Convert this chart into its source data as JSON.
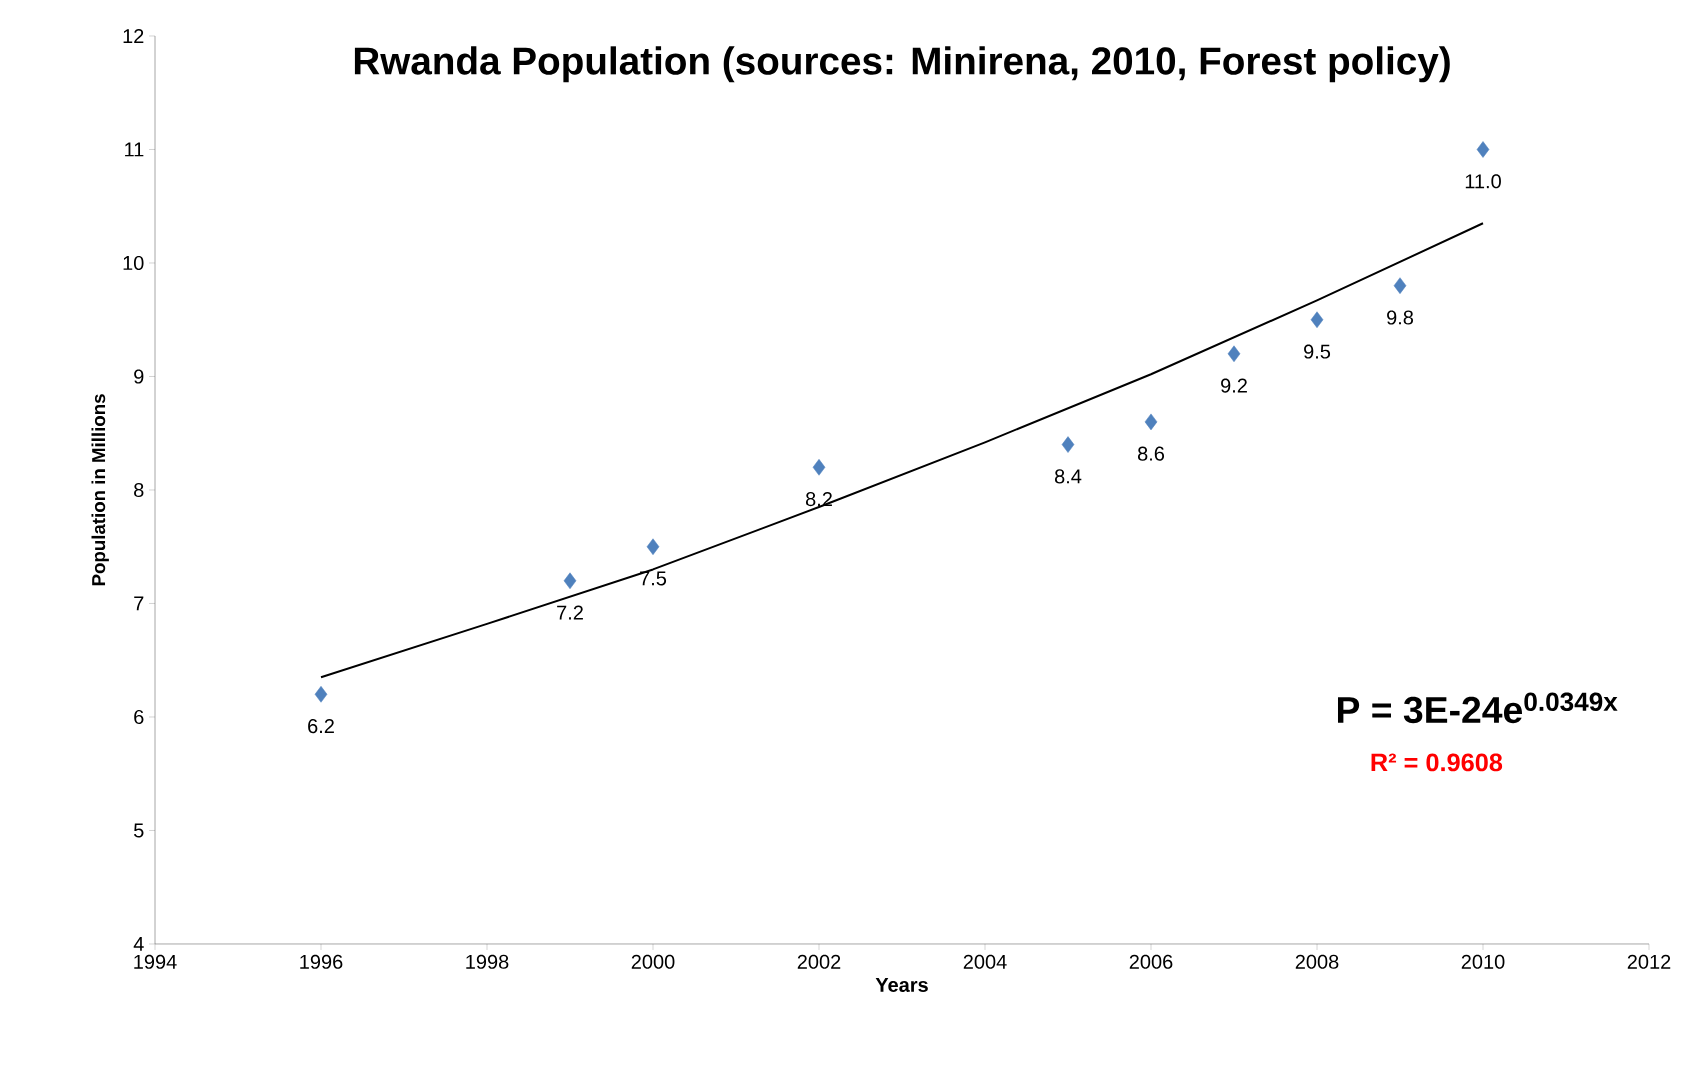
{
  "chart_data": {
    "type": "scatter",
    "title": "Rwanda Population (sources: Minirena, 2010, Forest policy)",
    "xlabel": "Years",
    "ylabel": "Population in Millions",
    "series": [
      {
        "color": "#4f81bd",
        "marker": "diamond",
        "x": [
          1996,
          1999,
          2000,
          2002,
          2005,
          2006,
          2007,
          2008,
          2009,
          2010
        ],
        "values": [
          6.2,
          7.2,
          7.5,
          8.2,
          8.4,
          8.6,
          9.2,
          9.5,
          9.8,
          11.0
        ],
        "value_labels": [
          "6.2",
          "7.2",
          "7.5",
          "8.2",
          "8.4",
          "8.6",
          "9.2",
          "9.5",
          "9.8",
          "11.0"
        ]
      },
      {
        "type": "line",
        "color": "#000000",
        "marker": "none",
        "line_style": "solid",
        "x": [
          1996,
          1998,
          2000,
          2002,
          2004,
          2006,
          2008,
          2010
        ],
        "values": [
          6.35,
          6.82,
          7.3,
          7.85,
          8.42,
          9.02,
          9.67,
          10.35
        ]
      }
    ],
    "annotations": [
      "P = 3E-24e$^{0.0349x}$",
      "R² = 0.9608"
    ],
    "xlim": [
      1994,
      2012
    ],
    "ylim": [
      4,
      12
    ],
    "xticks": [
      1994,
      1996,
      1998,
      2000,
      2002,
      2004,
      2006,
      2008,
      2010,
      2012
    ],
    "yticks": [
      4,
      5,
      6,
      7,
      8,
      9,
      10,
      11,
      12
    ],
    "grid": false
  }
}
